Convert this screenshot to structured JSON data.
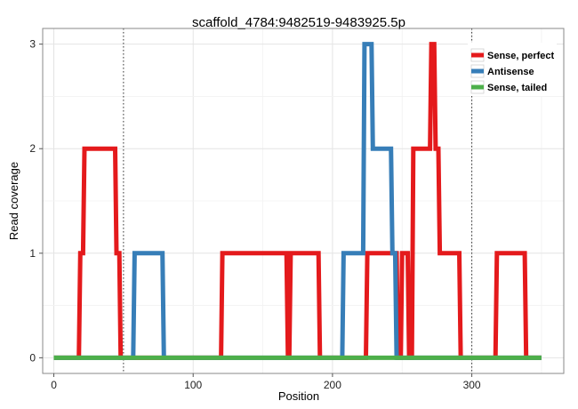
{
  "chart_data": {
    "type": "line",
    "title": "scaffold_4784:9482519-9483925.5p",
    "xlabel": "Position",
    "ylabel": "Read coverage",
    "xlim": [
      -8,
      366
    ],
    "ylim": [
      -0.15,
      3.15
    ],
    "xticks": [
      0,
      100,
      200,
      300
    ],
    "yticks": [
      0,
      1,
      2,
      3
    ],
    "grid": true,
    "legend_position": "top-right",
    "vlines": [
      50,
      300
    ],
    "series": [
      {
        "name": "Sense, perfect",
        "color": "#e41a1c",
        "x": [
          0,
          18,
          19,
          21,
          22,
          44,
          45,
          47,
          48,
          120,
          121,
          167,
          168,
          169,
          170,
          190,
          191,
          224,
          225,
          246,
          247,
          249,
          250,
          254,
          255,
          257,
          258,
          270,
          271,
          273,
          274,
          276,
          277,
          291,
          292,
          317,
          318,
          338,
          339,
          350
        ],
        "y": [
          0,
          0,
          1,
          1,
          2,
          2,
          1,
          1,
          0,
          0,
          1,
          1,
          0,
          0,
          1,
          1,
          0,
          0,
          1,
          1,
          0,
          0,
          1,
          1,
          0,
          0,
          2,
          2,
          3,
          3,
          2,
          2,
          1,
          1,
          0,
          0,
          1,
          1,
          0,
          0
        ]
      },
      {
        "name": "Antisense",
        "color": "#377eb8",
        "x": [
          0,
          57,
          58,
          78,
          79,
          207,
          208,
          222,
          223,
          228,
          229,
          242,
          243,
          245,
          246,
          350
        ],
        "y": [
          0,
          0,
          1,
          1,
          0,
          0,
          1,
          1,
          3,
          3,
          2,
          2,
          1,
          1,
          0,
          0
        ]
      },
      {
        "name": "Sense, tailed",
        "color": "#4daf4a",
        "x": [
          0,
          350
        ],
        "y": [
          0,
          0
        ]
      }
    ]
  }
}
